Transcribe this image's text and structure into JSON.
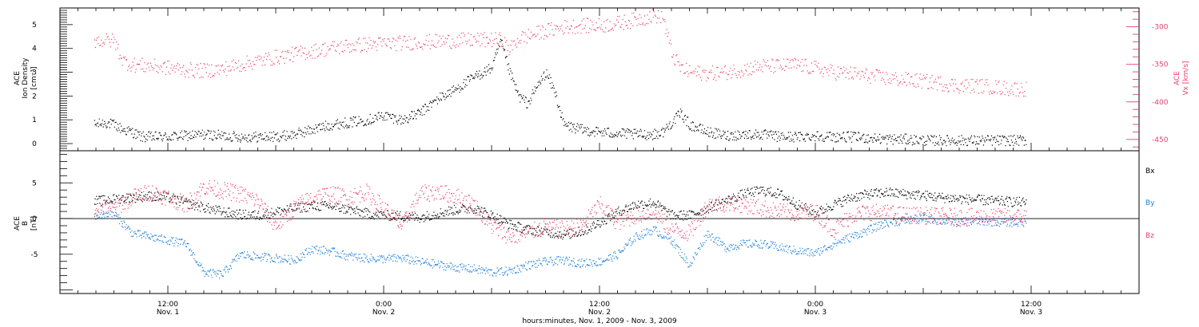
{
  "colors": {
    "black": "#000000",
    "pink": "#e8416c",
    "blue": "#1f7fd6"
  },
  "chart_data": [
    {
      "type": "scatter",
      "panel": "top",
      "ylabel_left": [
        "ACE",
        "Ion Density",
        "[cm⁻³]"
      ],
      "ylabel_right": [
        "ACE",
        "Vx [km/s]"
      ],
      "ylim_left": [
        -0.3,
        5.7
      ],
      "yticks_left": [
        0,
        1,
        2,
        3,
        4,
        5
      ],
      "ylim_right": [
        -465,
        -275
      ],
      "yticks_right": [
        -450,
        -400,
        -350,
        -300
      ],
      "series": [
        {
          "axis": "left",
          "color": "#000000",
          "x": [
            7.9,
            8.5,
            9.0,
            9.5,
            10.0,
            10.5,
            11.0,
            11.5,
            12.0,
            13.0,
            14.0,
            15.0,
            16.0,
            17.0,
            18.0,
            19.0,
            20.0,
            21.0,
            22.0,
            23.0,
            24.0,
            25.0,
            26.0,
            27.0,
            28.0,
            29.0,
            30.0,
            30.5,
            31.0,
            31.5,
            32.0,
            32.5,
            33.0,
            33.5,
            34.0,
            35.0,
            36.0,
            37.0,
            38.0,
            39.0,
            39.5,
            40.0,
            40.5,
            41.0,
            42.0,
            43.0,
            44.0,
            45.0,
            46.0,
            47.0,
            48.0,
            49.0,
            50.0,
            51.0,
            52.0,
            53.0,
            54.0,
            55.0,
            56.0,
            57.0,
            58.0,
            59.0,
            59.7
          ],
          "y": [
            0.8,
            0.9,
            0.8,
            0.6,
            0.5,
            0.3,
            0.3,
            0.3,
            0.3,
            0.35,
            0.4,
            0.35,
            0.3,
            0.3,
            0.3,
            0.4,
            0.6,
            0.8,
            0.9,
            1.0,
            1.2,
            1.0,
            1.3,
            1.9,
            2.3,
            2.8,
            3.2,
            4.3,
            3.0,
            2.0,
            1.7,
            2.4,
            3.0,
            2.2,
            0.8,
            0.6,
            0.5,
            0.45,
            0.4,
            0.4,
            0.5,
            0.9,
            1.3,
            0.8,
            0.5,
            0.35,
            0.4,
            0.4,
            0.3,
            0.3,
            0.35,
            0.3,
            0.3,
            0.25,
            0.2,
            0.2,
            0.15,
            0.15,
            0.15,
            0.15,
            0.15,
            0.15,
            0.15
          ]
        },
        {
          "axis": "right",
          "color": "#e8416c",
          "x": [
            7.9,
            8.5,
            9.0,
            9.5,
            10.0,
            11.0,
            12.0,
            13.0,
            14.0,
            15.0,
            16.0,
            17.0,
            18.0,
            19.0,
            20.0,
            21.0,
            22.0,
            23.0,
            24.0,
            25.0,
            26.0,
            27.0,
            28.0,
            29.0,
            30.0,
            30.5,
            31.0,
            31.5,
            32.0,
            33.0,
            34.0,
            35.0,
            36.0,
            37.0,
            38.0,
            39.0,
            39.5,
            40.0,
            40.5,
            41.0,
            42.0,
            43.0,
            44.0,
            45.0,
            46.0,
            47.0,
            48.0,
            49.0,
            50.0,
            51.0,
            52.0,
            53.0,
            54.0,
            55.0,
            56.0,
            57.0,
            58.0,
            59.0,
            59.7
          ],
          "y": [
            -318,
            -318,
            -318,
            -345,
            -350,
            -352,
            -354,
            -357,
            -358,
            -356,
            -350,
            -345,
            -340,
            -336,
            -332,
            -328,
            -325,
            -323,
            -322,
            -321,
            -320,
            -319,
            -318,
            -317,
            -317,
            -317,
            -330,
            -315,
            -312,
            -305,
            -300,
            -298,
            -298,
            -295,
            -290,
            -285,
            -285,
            -335,
            -355,
            -360,
            -362,
            -360,
            -356,
            -352,
            -352,
            -350,
            -355,
            -360,
            -362,
            -365,
            -368,
            -370,
            -372,
            -375,
            -378,
            -378,
            -380,
            -382,
            -382
          ]
        }
      ]
    },
    {
      "type": "scatter",
      "panel": "bottom",
      "ylabel_left": [
        "ACE",
        "B",
        "[nT]"
      ],
      "ylim": [
        -10.5,
        9.5
      ],
      "yticks": [
        -5,
        0,
        5
      ],
      "xlim": [
        6.0,
        66.0
      ],
      "xtick_hours": [
        12,
        24,
        36,
        48,
        60
      ],
      "xlabel": "hours:minutes, Nov. 1, 2009 - Nov. 3, 2009",
      "xticklabels": [
        {
          "time": "12:00",
          "date": "Nov. 1"
        },
        {
          "time": "0:00",
          "date": "Nov. 2"
        },
        {
          "time": "12:00",
          "date": "Nov. 2"
        },
        {
          "time": "0:00",
          "date": "Nov. 3"
        },
        {
          "time": "12:00",
          "date": "Nov. 3"
        }
      ],
      "legend_placement": "right",
      "series": [
        {
          "name": "Bx",
          "color": "#000000",
          "x": [
            7.9,
            8.5,
            9.0,
            10.0,
            11.0,
            12.0,
            13.0,
            14.0,
            15.0,
            16.0,
            17.0,
            18.0,
            19.0,
            20.0,
            21.0,
            22.0,
            23.0,
            24.0,
            25.0,
            26.0,
            27.0,
            28.0,
            29.0,
            30.0,
            31.0,
            32.0,
            33.0,
            34.0,
            35.0,
            36.0,
            37.0,
            38.0,
            39.0,
            40.0,
            41.0,
            42.0,
            43.0,
            44.0,
            45.0,
            46.0,
            47.0,
            48.0,
            49.0,
            50.0,
            51.0,
            52.0,
            53.0,
            54.0,
            55.0,
            56.0,
            57.0,
            58.0,
            59.0,
            59.7
          ],
          "y": [
            2.5,
            2.6,
            2.8,
            3.0,
            3.2,
            3.0,
            2.2,
            1.6,
            1.0,
            0.6,
            0.5,
            1.0,
            1.5,
            1.8,
            1.8,
            1.3,
            0.8,
            0.5,
            0.4,
            0.2,
            0.8,
            1.3,
            1.5,
            0.5,
            -0.8,
            -1.5,
            -1.8,
            -2.2,
            -1.8,
            -0.5,
            1.0,
            2.0,
            2.3,
            0.5,
            0.5,
            1.5,
            2.5,
            3.5,
            4.0,
            3.5,
            2.0,
            0.8,
            2.0,
            3.0,
            3.5,
            3.7,
            3.5,
            3.3,
            3.0,
            2.8,
            2.7,
            2.5,
            2.4,
            2.3
          ]
        },
        {
          "name": "By",
          "color": "#1f7fd6",
          "x": [
            7.9,
            8.5,
            9.0,
            10.0,
            11.0,
            12.0,
            13.0,
            14.0,
            15.0,
            16.0,
            17.0,
            18.0,
            19.0,
            20.0,
            21.0,
            22.0,
            23.0,
            24.0,
            25.0,
            26.0,
            27.0,
            28.0,
            29.0,
            30.0,
            31.0,
            32.0,
            33.0,
            34.0,
            35.0,
            36.0,
            37.0,
            38.0,
            39.0,
            40.0,
            41.0,
            42.0,
            43.0,
            44.0,
            45.0,
            46.0,
            47.0,
            48.0,
            49.0,
            50.0,
            51.0,
            52.0,
            53.0,
            54.0,
            55.0,
            56.0,
            57.0,
            58.0,
            59.0,
            59.7
          ],
          "y": [
            0.5,
            0.6,
            0.7,
            -2.0,
            -2.5,
            -3.0,
            -3.5,
            -7.5,
            -7.8,
            -5.0,
            -5.3,
            -5.5,
            -5.8,
            -4.2,
            -4.5,
            -5.2,
            -5.5,
            -5.6,
            -5.5,
            -6.0,
            -6.4,
            -6.8,
            -7.0,
            -7.5,
            -7.3,
            -6.5,
            -6.0,
            -5.8,
            -6.2,
            -6.0,
            -5.0,
            -2.5,
            -1.5,
            -3.0,
            -6.5,
            -2.0,
            -4.0,
            -3.5,
            -3.5,
            -4.0,
            -4.5,
            -4.8,
            -3.5,
            -2.5,
            -1.5,
            -0.5,
            -0.2,
            0.1,
            -0.3,
            -0.5,
            -0.3,
            -0.4,
            -0.5,
            -0.5
          ]
        },
        {
          "name": "Bz",
          "color": "#e8416c",
          "x": [
            7.9,
            8.5,
            9.0,
            10.0,
            11.0,
            12.0,
            13.0,
            14.0,
            15.0,
            16.0,
            17.0,
            18.0,
            19.0,
            20.0,
            21.0,
            22.0,
            23.0,
            24.0,
            25.0,
            26.0,
            27.0,
            28.0,
            29.0,
            30.0,
            31.0,
            32.0,
            33.0,
            34.0,
            35.0,
            36.0,
            37.0,
            38.0,
            39.0,
            40.0,
            41.0,
            42.0,
            43.0,
            44.0,
            45.0,
            46.0,
            47.0,
            48.0,
            49.0,
            50.0,
            51.0,
            52.0,
            53.0,
            54.0,
            55.0,
            56.0,
            57.0,
            58.0,
            59.0,
            59.7
          ],
          "y": [
            1.5,
            1.6,
            1.5,
            3.0,
            3.8,
            3.0,
            2.0,
            4.5,
            4.0,
            3.5,
            2.5,
            -1.0,
            1.5,
            3.0,
            3.5,
            3.0,
            3.8,
            1.5,
            -1.0,
            3.5,
            3.8,
            3.2,
            2.0,
            -1.0,
            -2.5,
            -2.0,
            -1.0,
            -1.5,
            -1.0,
            2.0,
            -0.5,
            0.5,
            1.0,
            -1.5,
            -2.0,
            2.0,
            2.2,
            2.0,
            1.5,
            1.0,
            0.8,
            1.0,
            -1.5,
            0.5,
            1.0,
            0.8,
            0.5,
            0.5,
            0.4,
            0.3,
            0.3,
            0.3,
            0.3,
            0.3
          ]
        }
      ]
    }
  ]
}
